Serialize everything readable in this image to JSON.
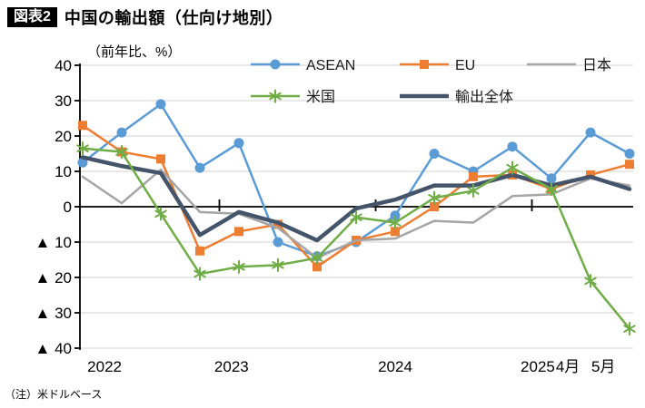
{
  "header": {
    "badge": "図表2",
    "title": "中国の輸出額（仕向け地別）",
    "unit": "（前年比、%）"
  },
  "footnote": "（注）米ドルベース",
  "chart_data": {
    "type": "line",
    "title": "中国の輸出額（仕向け地別）",
    "ylabel": "（前年比、%）",
    "ylim": [
      -40,
      40
    ],
    "grid": true,
    "legend_position": "top",
    "categories": [
      "2022Q1",
      "2022Q2",
      "2022Q3",
      "2022Q4",
      "2023Q1",
      "2023Q2",
      "2023Q3",
      "2023Q4",
      "2024Q1",
      "2024Q2",
      "2024Q3",
      "2024Q4",
      "2025Q1",
      "2025年4月",
      "2025年5月"
    ],
    "x_axis_labels": [
      {
        "text": "2022",
        "pos": 0.56
      },
      {
        "text": "2023",
        "pos": 3.81
      },
      {
        "text": "2024",
        "pos": 8.0
      },
      {
        "text": "2025",
        "pos": 11.65
      },
      {
        "text": "4月",
        "pos": 12.42
      },
      {
        "text": "5月",
        "pos": 13.33
      }
    ],
    "y_axis": {
      "min": -40,
      "max": 40,
      "step": 10,
      "tick_labels": [
        "40",
        "30",
        "20",
        "10",
        "0",
        "▲ 10",
        "▲ 20",
        "▲ 30",
        "▲ 40"
      ]
    },
    "year_separator_ticks": [
      3.5,
      7.5,
      11.5
    ],
    "series": [
      {
        "name": "ASEAN",
        "color": "#5B9BD5",
        "marker": "circle",
        "width": 2.5,
        "values": [
          12.5,
          21,
          29,
          11,
          18,
          -10,
          -14,
          -10,
          -2.5,
          15,
          10,
          17,
          8,
          21,
          15
        ]
      },
      {
        "name": "EU",
        "color": "#ED7D31",
        "marker": "square",
        "width": 2.5,
        "values": [
          23,
          15.5,
          13.5,
          -12.5,
          -7,
          -5,
          -17,
          -9.5,
          -7,
          0,
          8.5,
          9,
          5,
          9,
          12
        ]
      },
      {
        "name": "日本",
        "color": "#A5A5A5",
        "marker": "none",
        "width": 2.5,
        "values": [
          8.5,
          1,
          10.5,
          -1.5,
          -2,
          -6,
          -14.5,
          -9.5,
          -9,
          -4,
          -4.5,
          3,
          3.5,
          8,
          6
        ]
      },
      {
        "name": "米国",
        "color": "#70AD47",
        "marker": "asterisk",
        "width": 2.5,
        "values": [
          16.5,
          15.5,
          -2,
          -19,
          -17,
          -16.5,
          -14.5,
          -3,
          -4.5,
          2.5,
          4.5,
          11,
          5,
          -21,
          -34.5
        ]
      },
      {
        "name": "輸出全体",
        "color": "#44546A",
        "marker": "none",
        "width": 4.5,
        "values": [
          14,
          11.5,
          9.5,
          -8,
          -1.5,
          -4.5,
          -9.5,
          -0.5,
          2,
          6,
          6,
          9,
          6,
          8.5,
          5
        ]
      }
    ]
  }
}
